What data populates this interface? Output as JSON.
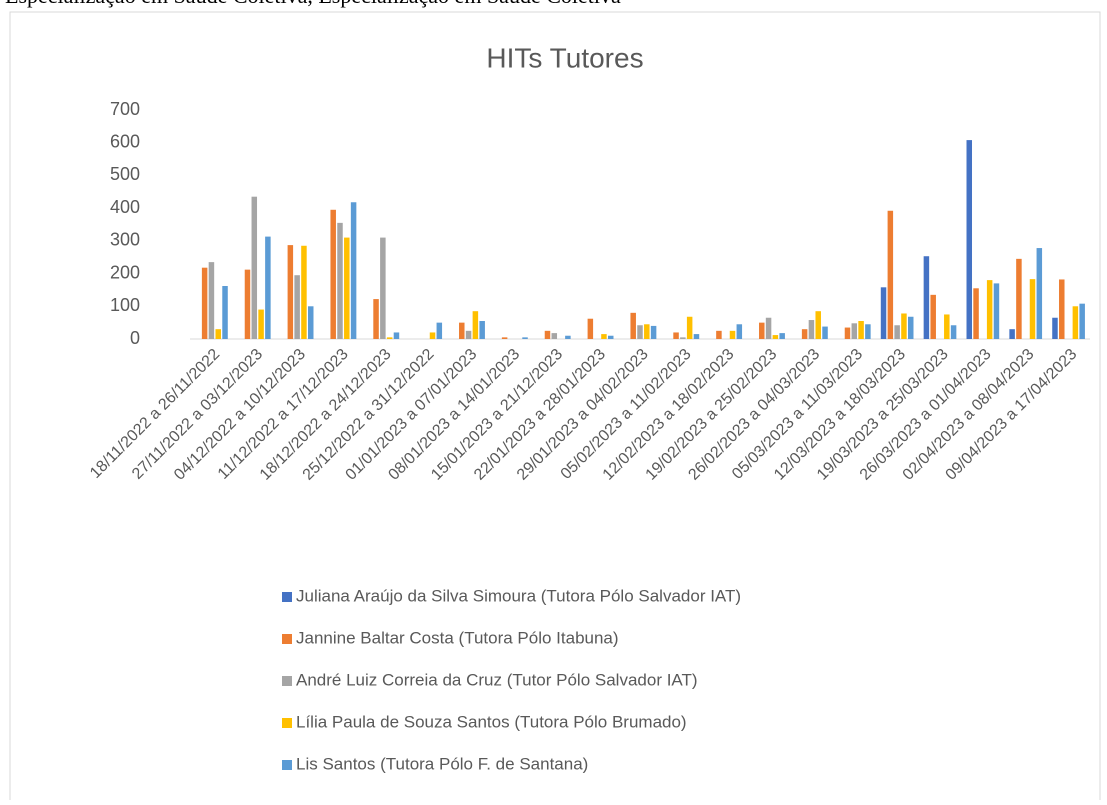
{
  "header": {
    "text": "Especialização em Saúde Coletiva, Especialização em Saúde Coletiva"
  },
  "chart_data": {
    "type": "bar",
    "title": "HITs Tutores",
    "categories": [
      "18/11/2022 a 26/11/2022",
      "27/11/2022 a 03/12/2023",
      "04/12/2022 a 10/12/2023",
      "11/12/2022 a 17/12/2023",
      "18/12/2022 a 24/12/2023",
      "25/12/2022 a 31/12/2022",
      "01/01/2023 a 07/01/2023",
      "08/01/2023 a 14/01/2023",
      "15/01/2023 a 21/12/2023",
      "22/01/2023 a 28/01/2023",
      "29/01/2023 a 04/02/2023",
      "05/02/2023 a 11/02/2023",
      "12/02/2023 a 18/02/2023",
      "19/02/2023 a 25/02/2023",
      "26/02/2023 a 04/03/2023",
      "05/03/2023 a 11/03/2023",
      "12/03/2023 a 18/03/2023",
      "19/03/2023 a 25/03/2023",
      "26/03/2023 a 01/04/2023",
      "02/04/2023 a 08/04/2023",
      "09/04/2023 a 17/04/2023"
    ],
    "series": [
      {
        "name": "Juliana Araújo da Silva Simoura (Tutora Pólo Salvador IAT)",
        "color": "#4472c4",
        "values": [
          0,
          0,
          0,
          0,
          0,
          0,
          0,
          0,
          0,
          0,
          0,
          0,
          0,
          0,
          0,
          0,
          158,
          253,
          608,
          30,
          65
        ]
      },
      {
        "name": "Jannine Baltar Costa (Tutora Pólo Itabuna)",
        "color": "#ed7d31",
        "values": [
          218,
          212,
          287,
          395,
          122,
          0,
          50,
          5,
          25,
          62,
          80,
          20,
          25,
          50,
          30,
          35,
          392,
          135,
          155,
          245,
          182
        ]
      },
      {
        "name": "André Luiz Correia da Cruz (Tutor Pólo Salvador IAT)",
        "color": "#a5a5a5",
        "values": [
          235,
          435,
          195,
          355,
          310,
          0,
          25,
          0,
          18,
          0,
          42,
          5,
          0,
          65,
          58,
          48,
          42,
          0,
          0,
          0,
          0
        ]
      },
      {
        "name": "Lília Paula de Souza Santos (Tutora Pólo Brumado)",
        "color": "#ffc000",
        "values": [
          30,
          90,
          285,
          310,
          5,
          20,
          85,
          0,
          0,
          15,
          45,
          68,
          25,
          12,
          85,
          55,
          78,
          75,
          180,
          183,
          100
        ]
      },
      {
        "name": "Lis Santos (Tutora Pólo F. de Santana)",
        "color": "#5b9bd5",
        "values": [
          162,
          313,
          100,
          418,
          20,
          50,
          55,
          5,
          10,
          10,
          40,
          15,
          45,
          18,
          38,
          45,
          68,
          42,
          170,
          278,
          108
        ]
      }
    ],
    "ylim": [
      0,
      700
    ],
    "yticks": [
      0,
      100,
      200,
      300,
      400,
      500,
      600,
      700
    ],
    "grid": false
  }
}
